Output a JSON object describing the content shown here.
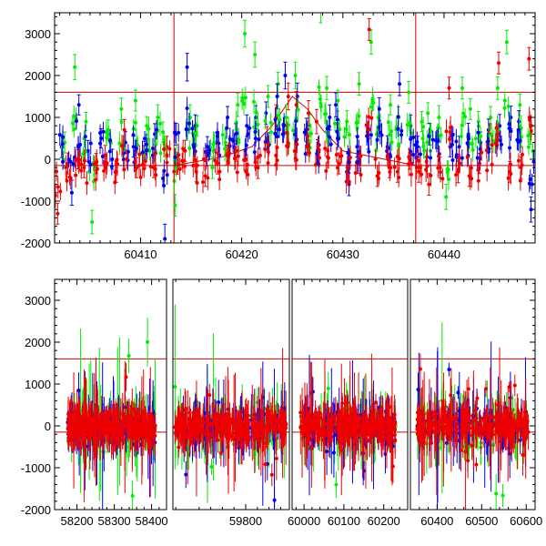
{
  "chart_data": [
    {
      "type": "scatter",
      "title": "",
      "xlabel": "",
      "ylabel": "",
      "xlim": [
        60401.5,
        60449
      ],
      "ylim": [
        -2000,
        3500
      ],
      "x_ticks": [
        60410,
        60420,
        60430,
        60440
      ],
      "y_ticks": [
        -2000,
        -1000,
        0,
        1000,
        2000,
        3000
      ],
      "grid": false,
      "legend": "none",
      "error_bars": true,
      "colors": {
        "green": "#00ee00",
        "blue": "#0000ee",
        "red": "#ee0000",
        "reference": "#cc0000"
      },
      "reference_lines": {
        "horizontal": [
          1600,
          -150
        ],
        "vertical": [
          60413.3,
          60437.2
        ]
      },
      "reference_curve": {
        "x": [
          60413.3,
          60418,
          60421,
          60423,
          60425,
          60426.5,
          60428,
          60430,
          60437.2
        ],
        "y": [
          -150,
          50,
          300,
          800,
          1500,
          1200,
          700,
          200,
          -150
        ]
      },
      "series": [
        {
          "color_key": "green",
          "x": [
            60402.5,
            60403.5,
            60404.6,
            60405.2,
            60406.8,
            60408.1,
            60409.5,
            60410.6,
            60411.7,
            60412.2,
            60413.4,
            60414.9,
            60415.6,
            60417.1,
            60418.4,
            60419.6,
            60420.3,
            60421.3,
            60422.6,
            60423.6,
            60424.4,
            60425.3,
            60426.7,
            60427.8,
            60428.4,
            60429.5,
            60430.4,
            60431.6,
            60432.8,
            60433.5,
            60434.7,
            60435.5,
            60436.5,
            60437.8,
            60438.4,
            60439.5,
            60440.2,
            60441.8,
            60442.6,
            60443.4,
            60444.6,
            60445.3,
            60446.2,
            60447.5,
            60448.5
          ],
          "y": [
            400,
            2200,
            900,
            -1500,
            700,
            1200,
            1400,
            800,
            1000,
            650,
            -1100,
            1000,
            800,
            -200,
            400,
            1300,
            3000,
            2500,
            1500,
            1800,
            1000,
            2000,
            800,
            3600,
            1700,
            1400,
            900,
            1800,
            2800,
            1000,
            1300,
            1000,
            1600,
            900,
            1100,
            1000,
            -900,
            1700,
            1200,
            900,
            1000,
            1700,
            2800,
            1300,
            600
          ],
          "err": [
            250,
            300,
            220,
            280,
            240,
            260,
            250,
            220,
            300,
            240,
            260,
            300,
            240,
            260,
            300,
            280,
            320,
            300,
            260,
            280,
            300,
            320,
            260,
            340,
            280,
            250,
            260,
            270,
            290,
            260,
            240,
            250,
            260,
            240,
            250,
            280,
            300,
            260,
            250,
            240,
            260,
            270,
            280,
            260,
            240
          ]
        },
        {
          "color_key": "blue",
          "x": [
            60402.2,
            60403.2,
            60403.9,
            60404.8,
            60406.1,
            60407.2,
            60408.5,
            60409.3,
            60410.4,
            60411.4,
            60412.4,
            60413.5,
            60414.6,
            60415.4,
            60416.6,
            60417.5,
            60418.6,
            60419.4,
            60420.5,
            60421.4,
            60422.4,
            60423.5,
            60424.3,
            60425.5,
            60426.4,
            60427.5,
            60428.7,
            60429.3,
            60430.6,
            60431.4,
            60432.5,
            60433.6,
            60434.4,
            60435.6,
            60436.7,
            60437.4,
            60438.6,
            60439.4,
            60440.6,
            60441.5,
            60442.4,
            60443.6,
            60444.4,
            60445.5,
            60446.6,
            60447.4,
            60448.6
          ],
          "y": [
            300,
            -800,
            1300,
            200,
            500,
            0,
            400,
            300,
            200,
            600,
            -1900,
            600,
            2200,
            800,
            300,
            400,
            1000,
            600,
            800,
            1000,
            1100,
            1500,
            2000,
            1500,
            700,
            200,
            1000,
            1300,
            -600,
            300,
            500,
            1200,
            300,
            1800,
            800,
            300,
            600,
            500,
            300,
            300,
            600,
            400,
            700,
            800,
            1000,
            900,
            -1200
          ],
          "err": [
            260,
            300,
            240,
            250,
            230,
            240,
            260,
            250,
            230,
            250,
            350,
            260,
            330,
            260,
            240,
            240,
            260,
            250,
            260,
            280,
            270,
            300,
            320,
            320,
            280,
            270,
            300,
            290,
            270,
            250,
            260,
            270,
            260,
            280,
            260,
            250,
            260,
            250,
            240,
            250,
            260,
            250,
            260,
            270,
            270,
            260,
            300
          ]
        },
        {
          "color_key": "red",
          "x": [
            60401.8,
            60402.8,
            60403.8,
            60404.4,
            60405.6,
            60406.5,
            60407.6,
            60408.4,
            60409.6,
            60410.3,
            60411.3,
            60412.6,
            60413.6,
            60414.4,
            60415.5,
            60416.4,
            60417.6,
            60418.5,
            60419.5,
            60420.4,
            60421.6,
            60422.5,
            60423.4,
            60424.6,
            60425.4,
            60426.6,
            60427.4,
            60428.5,
            60429.6,
            60430.5,
            60431.5,
            60432.6,
            60433.4,
            60434.6,
            60435.4,
            60436.6,
            60437.5,
            60438.5,
            60439.6,
            60440.5,
            60441.4,
            60442.5,
            60443.5,
            60444.5,
            60445.4,
            60446.5,
            60447.6,
            60448.4
          ],
          "y": [
            -1300,
            -100,
            0,
            -200,
            -100,
            100,
            -300,
            700,
            -200,
            100,
            -200,
            300,
            -100,
            200,
            -300,
            -400,
            -100,
            100,
            200,
            0,
            -200,
            500,
            1000,
            1500,
            1300,
            1100,
            900,
            200,
            -100,
            -300,
            -100,
            3100,
            -400,
            -200,
            -300,
            0,
            -300,
            -600,
            -200,
            1700,
            -300,
            -400,
            -100,
            600,
            2300,
            -300,
            -200,
            2400
          ],
          "err": [
            250,
            250,
            230,
            240,
            240,
            230,
            250,
            250,
            240,
            230,
            240,
            250,
            260,
            250,
            240,
            250,
            250,
            240,
            250,
            240,
            260,
            280,
            300,
            320,
            320,
            300,
            290,
            270,
            250,
            250,
            240,
            260,
            250,
            240,
            250,
            240,
            250,
            260,
            250,
            260,
            260,
            250,
            240,
            250,
            260,
            250,
            260,
            270
          ]
        }
      ]
    },
    {
      "type": "scatter",
      "title": "",
      "xlabel": "",
      "ylabel": "",
      "ylim": [
        -2000,
        3500
      ],
      "y_ticks": [
        -2000,
        -1000,
        0,
        1000,
        2000,
        3000
      ],
      "grid": false,
      "legend": "none",
      "error_bars": true,
      "colors": {
        "green": "#00ee00",
        "blue": "#0000ee",
        "red": "#ee0000",
        "reference": "#cc0000"
      },
      "reference_lines": {
        "horizontal": [
          1600,
          -150
        ]
      },
      "segments": [
        {
          "xlim": [
            58140,
            58440
          ],
          "x_ticks": [
            58200,
            58300,
            58400
          ],
          "data_range": [
            58175,
            58410
          ]
        },
        {
          "xlim": [
            59675,
            59875
          ],
          "x_ticks": [
            59800
          ],
          "data_range": [
            59678,
            59870
          ]
        },
        {
          "xlim": [
            59970,
            60260
          ],
          "x_ticks": [
            60000,
            60100,
            60200
          ],
          "data_range": [
            59990,
            60230
          ]
        },
        {
          "xlim": [
            60340,
            60620
          ],
          "x_ticks": [
            60400,
            60500,
            60600
          ],
          "data_range": [
            60355,
            60605
          ]
        }
      ],
      "series_style": [
        {
          "color_key": "green",
          "typical_spread": 700,
          "typical_err": 400
        },
        {
          "color_key": "blue",
          "typical_spread": 550,
          "typical_err": 350
        },
        {
          "color_key": "red",
          "typical_spread": 450,
          "typical_err": 300
        }
      ]
    }
  ]
}
